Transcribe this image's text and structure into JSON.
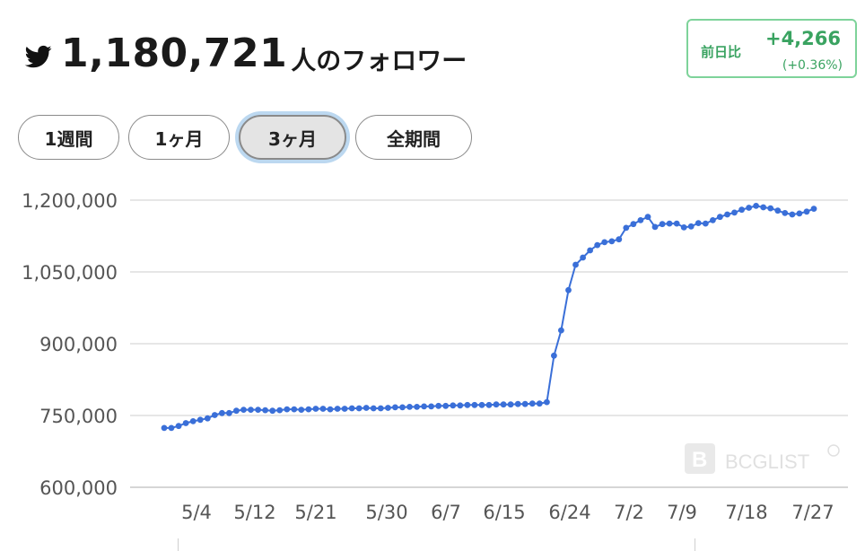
{
  "header": {
    "icon": "twitter-bird-icon",
    "count": "1,180,721",
    "suffix": "人のフォロワー"
  },
  "change": {
    "label": "前日比",
    "absolute": "+4,266",
    "percent": "(+0.36%)",
    "color": "#3aa361"
  },
  "tabs": [
    {
      "label": "1週間",
      "active": false
    },
    {
      "label": "1ヶ月",
      "active": false
    },
    {
      "label": "3ヶ月",
      "active": true
    },
    {
      "label": "全期間",
      "active": false
    }
  ],
  "watermark": "BCGLIST",
  "chart_data": {
    "type": "line",
    "x_tick_labels": [
      "5/4",
      "5/12",
      "5/21",
      "5/30",
      "6/7",
      "6/15",
      "6/24",
      "7/2",
      "7/9",
      "7/18",
      "7/27"
    ],
    "y_tick_labels": [
      "1,200,000",
      "1,050,000",
      "900,000",
      "750,000",
      "600,000"
    ],
    "ylim": [
      600000,
      1200000
    ],
    "grid": true,
    "series_color": "#3a6fd8",
    "series": [
      {
        "values": [
          724000,
          724000,
          728000,
          734000,
          738000,
          741000,
          744000,
          751000,
          755000,
          755000,
          760000,
          762000,
          762000,
          762000,
          761000,
          760000,
          761000,
          763000,
          763000,
          762000,
          763000,
          764000,
          764000,
          763000,
          764000,
          764000,
          765000,
          765000,
          766000,
          765000,
          765000,
          766000,
          767000,
          767000,
          768000,
          768000,
          769000,
          769000,
          770000,
          770000,
          771000,
          771000,
          772000,
          772000,
          772000,
          772000,
          773000,
          773000,
          773000,
          774000,
          774000,
          775000,
          775000,
          778000,
          875000,
          928000,
          1012000,
          1065000,
          1080000,
          1095000,
          1106000,
          1112000,
          1114000,
          1118000,
          1142000,
          1150000,
          1158000,
          1165000,
          1144000,
          1150000,
          1151000,
          1151000,
          1143000,
          1145000,
          1152000,
          1151000,
          1158000,
          1165000,
          1170000,
          1174000,
          1180000,
          1184000,
          1188000,
          1185000,
          1183000,
          1178000,
          1173000,
          1170000,
          1172000,
          1176000,
          1182000
        ]
      }
    ]
  }
}
